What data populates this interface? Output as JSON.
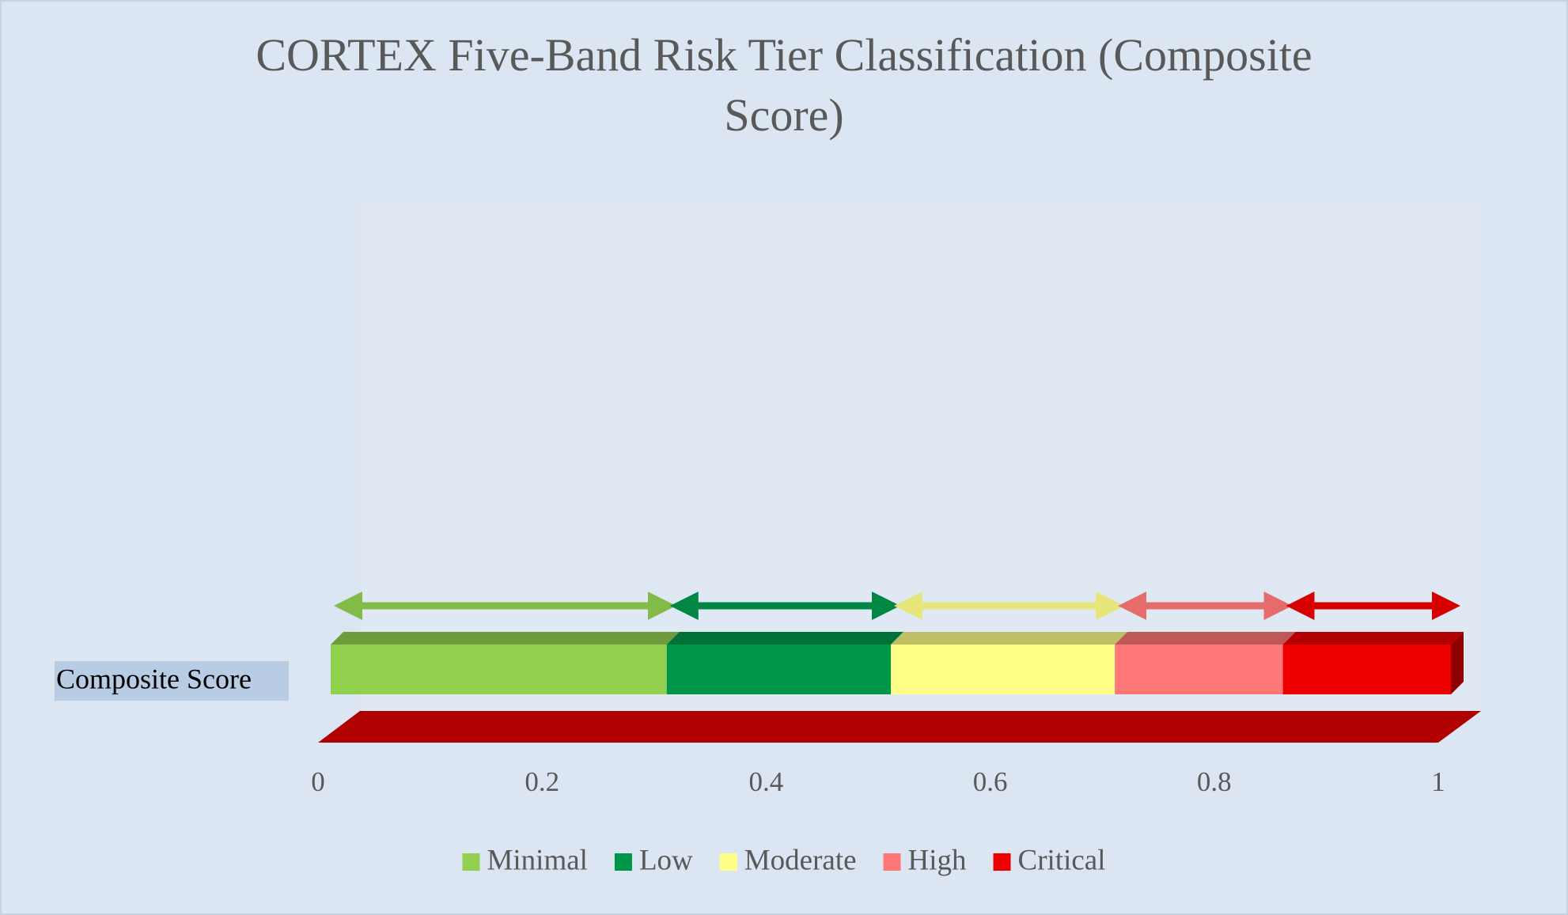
{
  "chart_data": {
    "type": "bar",
    "orientation": "horizontal",
    "stacked": true,
    "title": "CORTEX Five-Band Risk Tier Classification (Composite Score)",
    "categories": [
      "Composite Score"
    ],
    "series": [
      {
        "name": "Minimal",
        "color": "#92d050",
        "values": [
          0.3
        ]
      },
      {
        "name": "Low",
        "color": "#00964a",
        "values": [
          0.2
        ]
      },
      {
        "name": "Moderate",
        "color": "#ffff88",
        "values": [
          0.2
        ]
      },
      {
        "name": "High",
        "color": "#ff7777",
        "values": [
          0.15
        ]
      },
      {
        "name": "Critical",
        "color": "#ee0000",
        "values": [
          0.15
        ]
      }
    ],
    "xlim": [
      0,
      1
    ],
    "xticks": [
      0,
      0.2,
      0.4,
      0.6,
      0.8,
      1
    ],
    "legend": "bottom"
  }
}
